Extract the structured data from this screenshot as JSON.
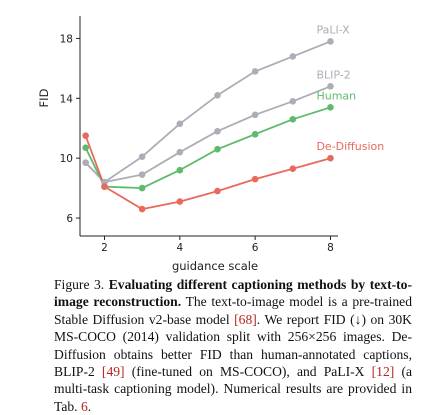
{
  "chart_data": {
    "type": "line",
    "xlabel": "guidance scale",
    "ylabel": "FID",
    "xlim": [
      1.35,
      8.2
    ],
    "ylim": [
      4.8,
      19.5
    ],
    "xticks": [
      2,
      4,
      6,
      8
    ],
    "yticks": [
      6,
      10,
      14,
      18
    ],
    "grid": false,
    "legend": "inline labels at right end of each line",
    "x": [
      1.5,
      2,
      3,
      4,
      5,
      6,
      7,
      8
    ],
    "series": [
      {
        "name": "PaLI-X",
        "color": "#adadb7",
        "values": [
          9.7,
          8.4,
          10.1,
          12.3,
          14.2,
          15.8,
          16.8,
          17.8
        ]
      },
      {
        "name": "BLIP-2",
        "color": "#adadb7",
        "values": [
          9.7,
          8.4,
          8.9,
          10.4,
          11.8,
          12.9,
          13.8,
          14.8
        ]
      },
      {
        "name": "Human",
        "color": "#5dbb6c",
        "values": [
          10.7,
          8.1,
          8.0,
          9.2,
          10.6,
          11.6,
          12.6,
          13.4
        ]
      },
      {
        "name": "De-Diffusion",
        "color": "#e96a5d",
        "values": [
          11.5,
          8.1,
          6.6,
          7.1,
          7.8,
          8.6,
          9.3,
          10.0
        ]
      }
    ]
  },
  "caption": {
    "label": "Figure 3.",
    "title": "Evaluating different captioning methods by text-to-image reconstruction.",
    "text_1": "The text-to-image model is a pre-trained Stable Diffusion v2-base model",
    "ref_1": "[68]",
    "text_2": ". We report FID (↓) on 30K MS-COCO (2014) validation split with 256×256 images. De-Diffusion obtains better FID than human-annotated captions, BLIP-2",
    "ref_2": "[49]",
    "text_3": "(fine-tuned on MS-COCO), and PaLI-X",
    "ref_3": "[12]",
    "text_4": "(a multi-task captioning model). Numerical results are provided in Tab.",
    "ref_4": "6",
    "text_5": "."
  }
}
